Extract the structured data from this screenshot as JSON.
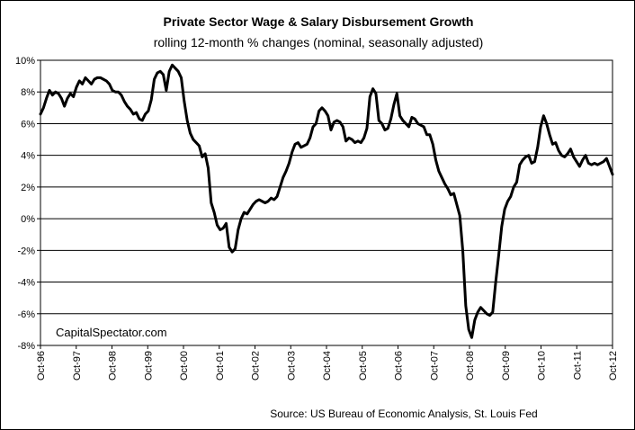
{
  "chart_data": {
    "type": "line",
    "title": "Private Sector Wage & Salary Disbursement Growth",
    "subtitle": "rolling 12-month % changes (nominal, seasonally adjusted)",
    "xlabel": "",
    "ylabel": "",
    "ylim": [
      -8,
      10
    ],
    "y_ticks": [
      -8,
      -6,
      -4,
      -2,
      0,
      2,
      4,
      6,
      8,
      10
    ],
    "y_tick_labels": [
      "-8%",
      "-6%",
      "-4%",
      "-2%",
      "0%",
      "2%",
      "4%",
      "6%",
      "8%",
      "10%"
    ],
    "x_tick_labels": [
      "Oct-96",
      "Oct-97",
      "Oct-98",
      "Oct-99",
      "Oct-00",
      "Oct-01",
      "Oct-02",
      "Oct-03",
      "Oct-04",
      "Oct-05",
      "Oct-06",
      "Oct-07",
      "Oct-08",
      "Oct-09",
      "Oct-10",
      "Oct-11",
      "Oct-12"
    ],
    "x_range": [
      "Oct-96",
      "Oct-12"
    ],
    "grid": true,
    "legend": "none",
    "line_color": "#000000",
    "series": [
      {
        "values": [
          6.6,
          7.0,
          7.6,
          8.1,
          7.8,
          8.0,
          7.9,
          7.6,
          7.1,
          7.6,
          7.9,
          7.7,
          8.3,
          8.7,
          8.5,
          8.9,
          8.7,
          8.5,
          8.8,
          8.9,
          8.9,
          8.8,
          8.7,
          8.5,
          8.1,
          8.0,
          8.0,
          7.8,
          7.4,
          7.1,
          6.9,
          6.6,
          6.7,
          6.3,
          6.2,
          6.6,
          6.8,
          7.5,
          8.8,
          9.2,
          9.3,
          9.1,
          8.1,
          9.3,
          9.7,
          9.5,
          9.3,
          8.9,
          7.4,
          6.2,
          5.4,
          5.0,
          4.8,
          4.6,
          3.9,
          4.1,
          3.2,
          1.0,
          0.4,
          -0.4,
          -0.7,
          -0.6,
          -0.3,
          -1.8,
          -2.1,
          -1.9,
          -0.7,
          0.0,
          0.4,
          0.3,
          0.6,
          0.9,
          1.1,
          1.2,
          1.1,
          1.0,
          1.1,
          1.3,
          1.2,
          1.4,
          2.0,
          2.6,
          3.0,
          3.5,
          4.2,
          4.7,
          4.8,
          4.5,
          4.6,
          4.7,
          5.1,
          5.8,
          6.0,
          6.8,
          7.0,
          6.8,
          6.5,
          5.6,
          6.1,
          6.2,
          6.1,
          5.8,
          4.9,
          5.1,
          5.0,
          4.8,
          4.9,
          4.8,
          5.1,
          5.7,
          7.7,
          8.2,
          7.9,
          6.2,
          6.0,
          5.6,
          5.7,
          6.3,
          7.2,
          7.9,
          6.5,
          6.2,
          6.0,
          5.8,
          6.4,
          6.3,
          6.0,
          5.9,
          5.8,
          5.3,
          5.3,
          4.7,
          3.7,
          3.0,
          2.6,
          2.2,
          1.9,
          1.5,
          1.6,
          0.9,
          0.2,
          -2.0,
          -5.5,
          -7.0,
          -7.5,
          -6.4,
          -5.9,
          -5.6,
          -5.8,
          -6.0,
          -6.1,
          -5.9,
          -4.0,
          -2.3,
          -0.5,
          0.6,
          1.1,
          1.4,
          2.0,
          2.3,
          3.4,
          3.7,
          3.9,
          4.0,
          3.5,
          3.6,
          4.5,
          5.8,
          6.5,
          6.0,
          5.3,
          4.7,
          4.8,
          4.3,
          4.0,
          3.9,
          4.1,
          4.4,
          3.9,
          3.6,
          3.3,
          3.7,
          4.0,
          3.5,
          3.4,
          3.5,
          3.4,
          3.5,
          3.6,
          3.8,
          3.3,
          2.8
        ]
      }
    ]
  },
  "watermark": "CapitalSpectator.com",
  "source_note": "Source: US Bureau of Economic Analysis, St. Louis Fed"
}
